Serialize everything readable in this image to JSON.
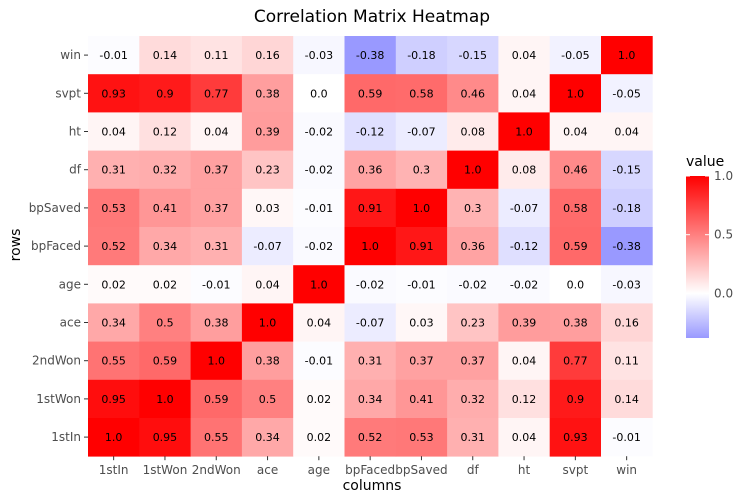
{
  "chart_data": {
    "type": "heatmap",
    "title": "Correlation Matrix Heatmap",
    "xlabel": "columns",
    "ylabel": "rows",
    "columns": [
      "1stIn",
      "1stWon",
      "2ndWon",
      "ace",
      "age",
      "bpFaced",
      "bpSaved",
      "df",
      "ht",
      "svpt",
      "win"
    ],
    "rows": [
      "win",
      "svpt",
      "ht",
      "df",
      "bpSaved",
      "bpFaced",
      "age",
      "ace",
      "2ndWon",
      "1stWon",
      "1stIn"
    ],
    "values": [
      [
        "-0.01",
        "0.14",
        "0.11",
        "0.16",
        "-0.03",
        "-0.38",
        "-0.18",
        "-0.15",
        "0.04",
        "-0.05",
        "1.0"
      ],
      [
        "0.93",
        "0.9",
        "0.77",
        "0.38",
        "0.0",
        "0.59",
        "0.58",
        "0.46",
        "0.04",
        "1.0",
        "-0.05"
      ],
      [
        "0.04",
        "0.12",
        "0.04",
        "0.39",
        "-0.02",
        "-0.12",
        "-0.07",
        "0.08",
        "1.0",
        "0.04",
        "0.04"
      ],
      [
        "0.31",
        "0.32",
        "0.37",
        "0.23",
        "-0.02",
        "0.36",
        "0.3",
        "1.0",
        "0.08",
        "0.46",
        "-0.15"
      ],
      [
        "0.53",
        "0.41",
        "0.37",
        "0.03",
        "-0.01",
        "0.91",
        "1.0",
        "0.3",
        "-0.07",
        "0.58",
        "-0.18"
      ],
      [
        "0.52",
        "0.34",
        "0.31",
        "-0.07",
        "-0.02",
        "1.0",
        "0.91",
        "0.36",
        "-0.12",
        "0.59",
        "-0.38"
      ],
      [
        "0.02",
        "0.02",
        "-0.01",
        "0.04",
        "1.0",
        "-0.02",
        "-0.01",
        "-0.02",
        "-0.02",
        "0.0",
        "-0.03"
      ],
      [
        "0.34",
        "0.5",
        "0.38",
        "1.0",
        "0.04",
        "-0.07",
        "0.03",
        "0.23",
        "0.39",
        "0.38",
        "0.16"
      ],
      [
        "0.55",
        "0.59",
        "1.0",
        "0.38",
        "-0.01",
        "0.31",
        "0.37",
        "0.37",
        "0.04",
        "0.77",
        "0.11"
      ],
      [
        "0.95",
        "1.0",
        "0.59",
        "0.5",
        "0.02",
        "0.34",
        "0.41",
        "0.32",
        "0.12",
        "0.9",
        "0.14"
      ],
      [
        "1.0",
        "0.95",
        "0.55",
        "0.34",
        "0.02",
        "0.52",
        "0.53",
        "0.31",
        "0.04",
        "0.93",
        "-0.01"
      ]
    ],
    "legend": {
      "title": "value",
      "ticks": [
        "1.0",
        "0.5",
        "0.0"
      ],
      "tick_values": [
        1.0,
        0.5,
        0.0
      ],
      "range": [
        -0.38,
        1.0
      ],
      "placement": "right"
    },
    "color_scale": {
      "low": "#9999ff",
      "mid": "#ffffff",
      "high": "#ff0000"
    },
    "grid": false
  }
}
